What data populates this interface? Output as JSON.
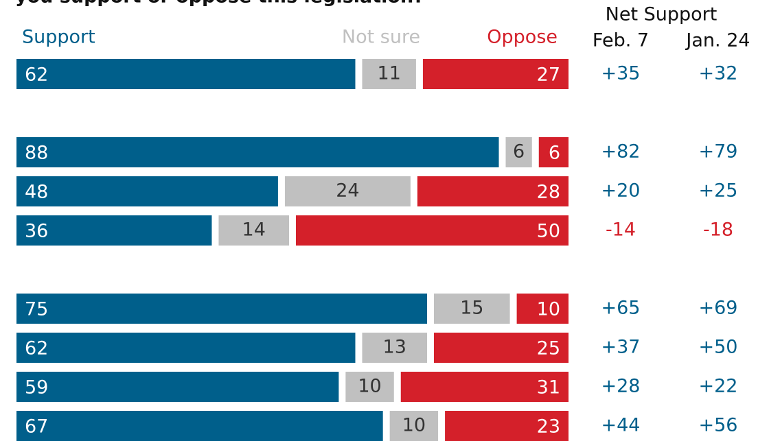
{
  "chart_data": {
    "type": "stacked_bar_horizontal",
    "title": "you support or oppose this legislation?",
    "categories": [
      null,
      null,
      null,
      null,
      null,
      null,
      null,
      null
    ],
    "group_breaks_after": [
      0,
      3
    ],
    "xlim": [
      0,
      100
    ],
    "series": [
      {
        "name": "Support",
        "color": "#005f8b",
        "values": [
          62,
          88,
          48,
          36,
          75,
          62,
          59,
          67
        ]
      },
      {
        "name": "Not sure",
        "color": "#c0c0c0",
        "values": [
          11,
          6,
          24,
          14,
          15,
          13,
          10,
          10
        ]
      },
      {
        "name": "Oppose",
        "color": "#d4202a",
        "values": [
          27,
          6,
          28,
          50,
          10,
          25,
          31,
          23
        ]
      }
    ],
    "net_support": {
      "title": "Net Support",
      "positive_color": "#005f8b",
      "negative_color": "#d4202a",
      "columns": [
        {
          "name": "Feb. 7",
          "values": [
            35,
            82,
            20,
            -14,
            65,
            37,
            28,
            44
          ],
          "value_labels": [
            "+35",
            "+82",
            "+20",
            "-14",
            "+65",
            "+37",
            "+28",
            "+44"
          ]
        },
        {
          "name": "Jan. 24",
          "values": [
            32,
            79,
            25,
            -18,
            69,
            50,
            22,
            56
          ],
          "value_labels": [
            "+32",
            "+79",
            "+25",
            "-18",
            "+69",
            "+50",
            "+22",
            "+56"
          ]
        }
      ]
    }
  }
}
